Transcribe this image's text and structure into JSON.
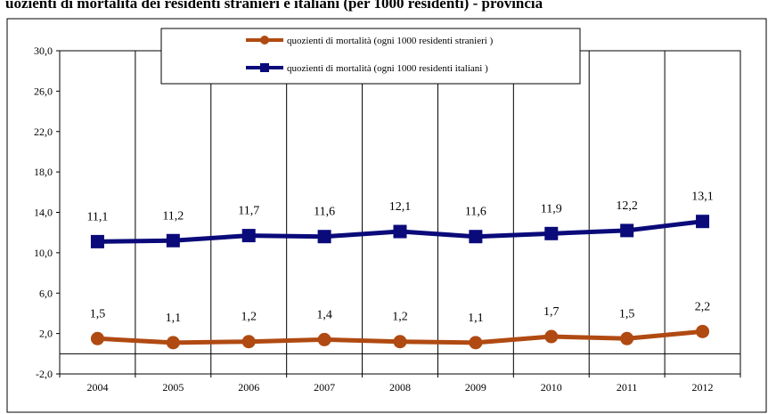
{
  "title": "uozienti di mortalità dei residenti stranieri e italiani (per 1000 residenti) - provincia",
  "chart_data": {
    "type": "line",
    "categories": [
      "2004",
      "2005",
      "2006",
      "2007",
      "2008",
      "2009",
      "2010",
      "2011",
      "2012"
    ],
    "series": [
      {
        "name": "quozienti di mortalità (ogni 1000 residenti stranieri )",
        "values": [
          1.5,
          1.1,
          1.2,
          1.4,
          1.2,
          1.1,
          1.7,
          1.5,
          2.2
        ],
        "labels": [
          "1,5",
          "1,1",
          "1,2",
          "1,4",
          "1,2",
          "1,1",
          "1,7",
          "1,5",
          "2,2"
        ],
        "color": "#b04a12",
        "marker": "circle"
      },
      {
        "name": "quozienti di mortalità (ogni 1000 residenti italiani )",
        "values": [
          11.1,
          11.2,
          11.7,
          11.6,
          12.1,
          11.6,
          11.9,
          12.2,
          13.1
        ],
        "labels": [
          "11,1",
          "11,2",
          "11,7",
          "11,6",
          "12,1",
          "11,6",
          "11,9",
          "12,2",
          "13,1"
        ],
        "color": "#0a0a7a",
        "marker": "square"
      }
    ],
    "yticks": [
      "-2,0",
      "2,0",
      "6,0",
      "10,0",
      "14,0",
      "18,0",
      "22,0",
      "26,0",
      "30,0"
    ],
    "ylim": [
      -2,
      30
    ],
    "grid": "vertical",
    "legend": "top-center",
    "xlabel": "",
    "ylabel": ""
  }
}
